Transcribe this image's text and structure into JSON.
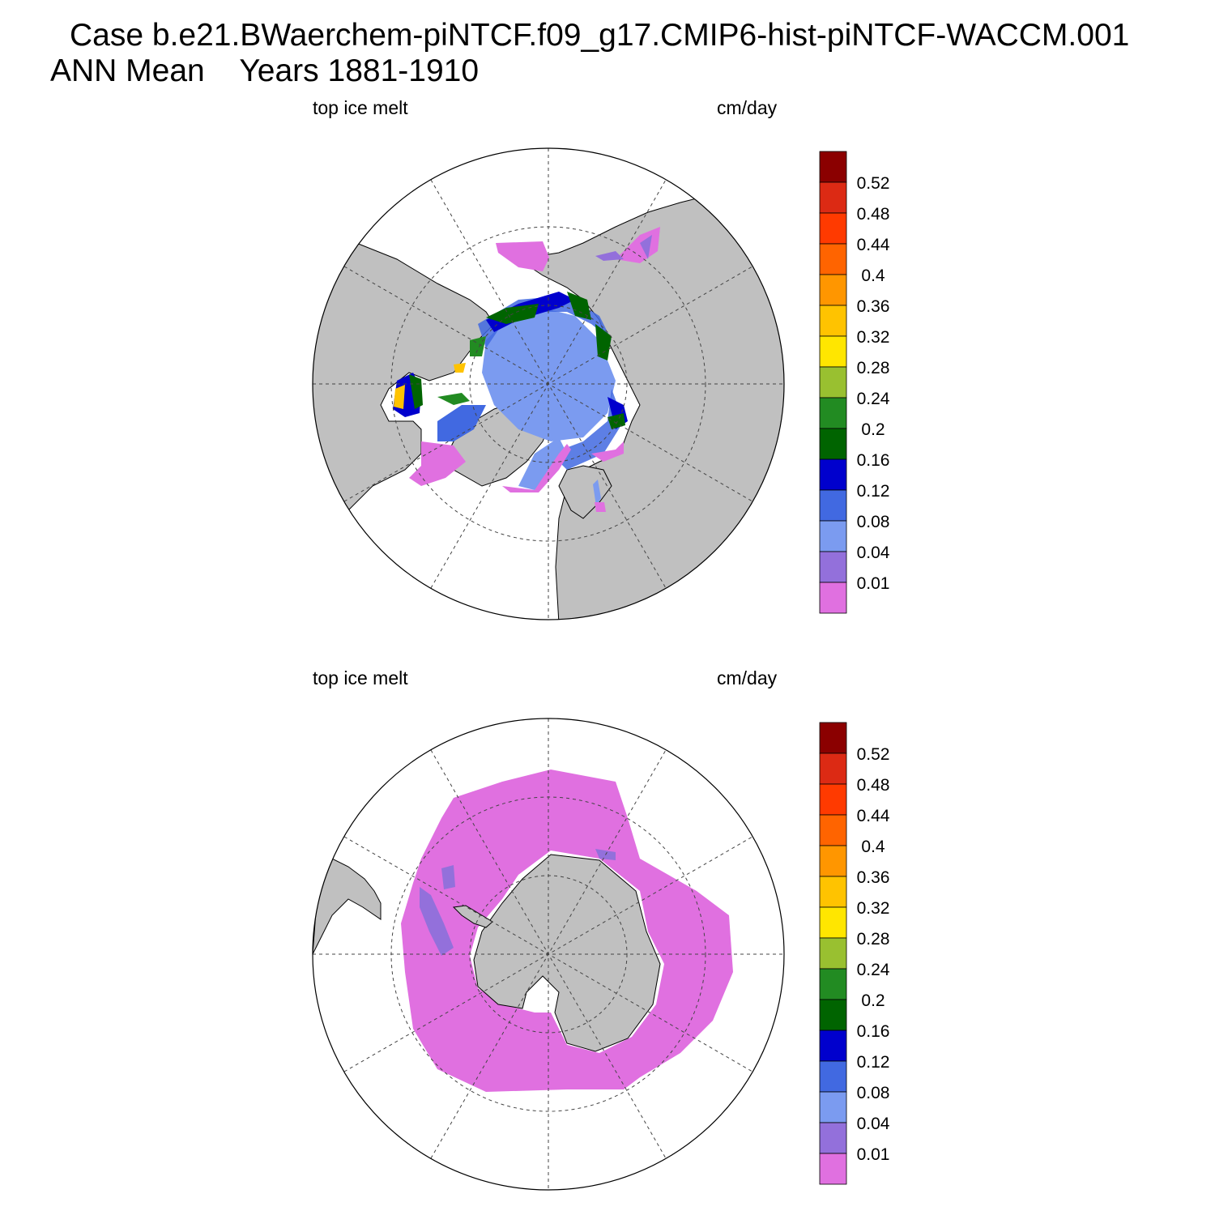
{
  "header": {
    "title_line1": "Case b.e21.BWaerchem-piNTCF.f09_g17.CMIP6-hist-piNTCF-WACCM.001",
    "title_line2": "ANN Mean    Years 1881-1910"
  },
  "colors": {
    "land": "#c0c0c0",
    "ocean": "#ffffff",
    "grid": "#444444"
  },
  "panels": [
    {
      "id": "north",
      "hemisphere": "Northern",
      "left_label": "top ice melt",
      "right_label": "cm/day",
      "dominant_range": "0.01 to 0.20 cm/day (pink to green)",
      "max_range": "0.24 to 0.36 cm/day (yellow-green to orange)"
    },
    {
      "id": "south",
      "hemisphere": "Southern",
      "left_label": "top ice melt",
      "right_label": "cm/day",
      "dominant_range": "below 0.01 cm/day (pink)",
      "max_range": "0.01 to 0.04 cm/day (purple)"
    }
  ],
  "colorbar": {
    "labels": [
      "0.52",
      "0.48",
      "0.44",
      "0.4",
      "0.36",
      "0.32",
      "0.28",
      "0.24",
      "0.2",
      "0.16",
      "0.12",
      "0.08",
      "0.04",
      "0.01"
    ],
    "colors": [
      "#8b0000",
      "#dc2a14",
      "#ff3a00",
      "#ff6400",
      "#ff9600",
      "#ffc300",
      "#ffe600",
      "#99c030",
      "#228b22",
      "#006400",
      "#0000cd",
      "#4169e1",
      "#7b9bf0",
      "#9370db",
      "#e070e0"
    ]
  }
}
